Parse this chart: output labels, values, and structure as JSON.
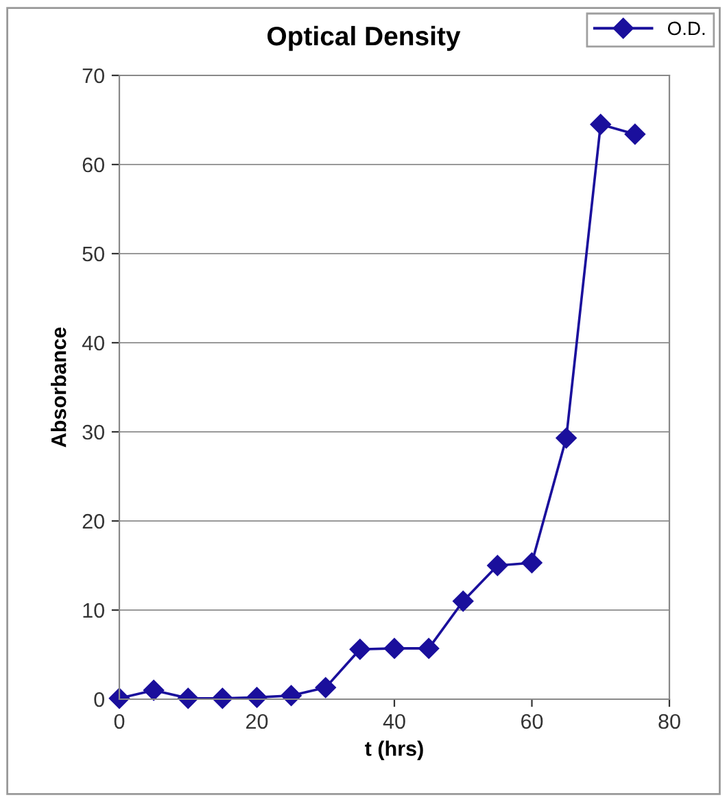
{
  "chart_data": {
    "type": "line",
    "title": "Optical Density",
    "xlabel": "t (hrs)",
    "ylabel": "Absorbance",
    "x": [
      0,
      5,
      10,
      15,
      20,
      25,
      30,
      35,
      40,
      45,
      50,
      55,
      60,
      65,
      70,
      75
    ],
    "series": [
      {
        "name": "O.D.",
        "color": "#1a0f9c",
        "values": [
          0.1,
          1.0,
          0.1,
          0.1,
          0.2,
          0.4,
          1.3,
          5.6,
          5.7,
          5.7,
          11.0,
          15.0,
          15.3,
          29.3,
          64.5,
          63.4
        ]
      }
    ],
    "xlim": [
      0,
      80
    ],
    "xticks": [
      0,
      20,
      40,
      60,
      80
    ],
    "ylim": [
      0,
      70
    ],
    "yticks": [
      0,
      10,
      20,
      30,
      40,
      50,
      60,
      70
    ],
    "grid": "y",
    "legend": "top right",
    "marker": "diamond",
    "line_style": "solid"
  }
}
